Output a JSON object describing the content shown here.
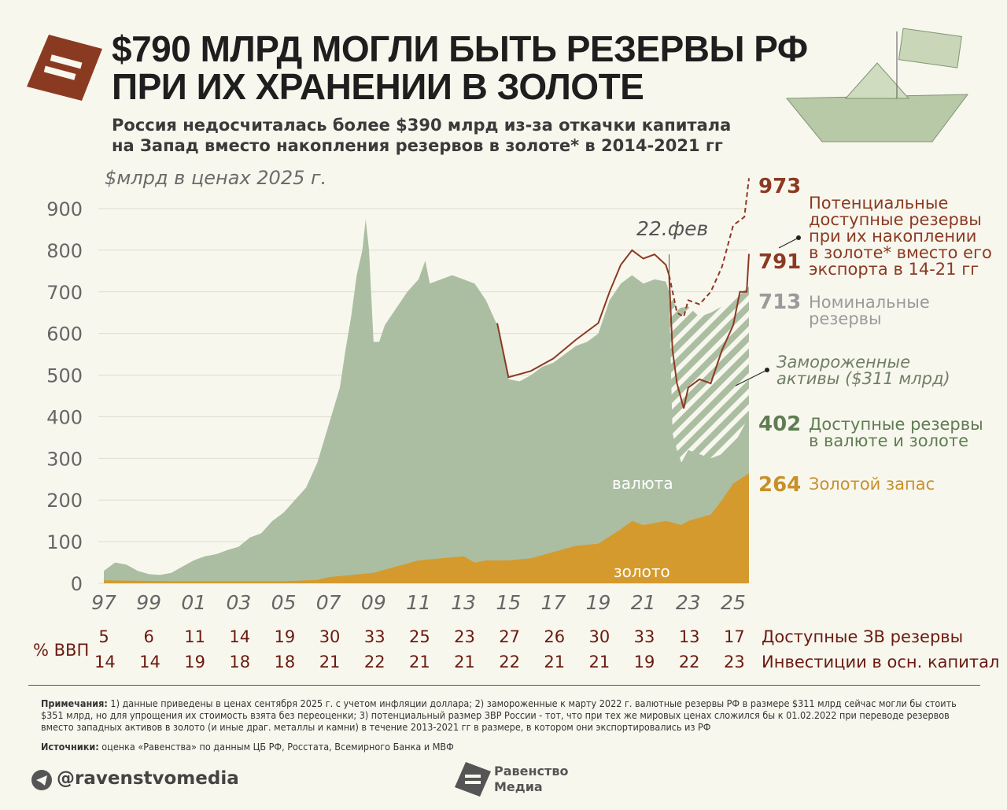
{
  "title_lines": [
    "$790 МЛРД МОГЛИ БЫТЬ РЕЗЕРВЫ РФ",
    "ПРИ ИХ ХРАНЕНИИ В ЗОЛОТЕ"
  ],
  "subtitle_lines": [
    "Россия недосчиталась более $390 млрд из-за откачки капитала",
    "на Запад вместо накопления резервов в золоте* в 2014-2021 гг"
  ],
  "colors": {
    "brand": "#8b3a22",
    "available": "#abbea2",
    "gold": "#d49a2e",
    "potential": "#8b3a22",
    "nominal_label": "#9a9a9a",
    "available_label": "#5f7d52"
  },
  "chart_data": {
    "type": "area",
    "ylabel": "$млрд в ценах 2025 г.",
    "ylim": [
      0,
      900
    ],
    "yticks": [
      0,
      100,
      200,
      300,
      400,
      500,
      600,
      700,
      800,
      900
    ],
    "xticks": [
      "97",
      "99",
      "01",
      "03",
      "05",
      "07",
      "09",
      "11",
      "13",
      "15",
      "17",
      "19",
      "21",
      "23",
      "25"
    ],
    "grid": true,
    "annotation": "22.фев",
    "area_labels": {
      "currency": "валюта",
      "gold": "золото"
    },
    "series": [
      {
        "key": "nominal",
        "name": "Номинальные резервы",
        "end_value": 713,
        "points": [
          [
            1997,
            30
          ],
          [
            1997.5,
            50
          ],
          [
            1998,
            45
          ],
          [
            1998.5,
            30
          ],
          [
            1999,
            22
          ],
          [
            1999.5,
            20
          ],
          [
            2000,
            25
          ],
          [
            2000.5,
            40
          ],
          [
            2001,
            55
          ],
          [
            2001.5,
            65
          ],
          [
            2002,
            70
          ],
          [
            2002.5,
            80
          ],
          [
            2003,
            88
          ],
          [
            2003.5,
            110
          ],
          [
            2004,
            120
          ],
          [
            2004.5,
            150
          ],
          [
            2005,
            170
          ],
          [
            2005.5,
            200
          ],
          [
            2006,
            230
          ],
          [
            2006.5,
            290
          ],
          [
            2007,
            380
          ],
          [
            2007.5,
            470
          ],
          [
            2007.75,
            560
          ],
          [
            2008,
            640
          ],
          [
            2008.25,
            740
          ],
          [
            2008.5,
            800
          ],
          [
            2008.65,
            875
          ],
          [
            2008.8,
            800
          ],
          [
            2009,
            580
          ],
          [
            2009.25,
            580
          ],
          [
            2009.5,
            620
          ],
          [
            2010,
            660
          ],
          [
            2010.5,
            700
          ],
          [
            2011,
            730
          ],
          [
            2011.3,
            775
          ],
          [
            2011.5,
            720
          ],
          [
            2012,
            730
          ],
          [
            2012.5,
            740
          ],
          [
            2013,
            730
          ],
          [
            2013.5,
            720
          ],
          [
            2014,
            680
          ],
          [
            2014.5,
            620
          ],
          [
            2015,
            490
          ],
          [
            2015.5,
            485
          ],
          [
            2016,
            500
          ],
          [
            2016.5,
            520
          ],
          [
            2017,
            530
          ],
          [
            2017.5,
            550
          ],
          [
            2018,
            570
          ],
          [
            2018.5,
            580
          ],
          [
            2019,
            600
          ],
          [
            2019.5,
            680
          ],
          [
            2020,
            720
          ],
          [
            2020.5,
            740
          ],
          [
            2021,
            720
          ],
          [
            2021.5,
            730
          ],
          [
            2022,
            725
          ],
          [
            2022.15,
            700
          ],
          [
            2022.5,
            660
          ],
          [
            2023,
            665
          ],
          [
            2023.5,
            640
          ],
          [
            2024,
            650
          ],
          [
            2024.5,
            665
          ],
          [
            2025,
            680
          ],
          [
            2025.7,
            713
          ]
        ]
      },
      {
        "key": "available",
        "name": "Доступные резервы в валюте и золоте",
        "end_value": 402,
        "points": [
          [
            2022.15,
            700
          ],
          [
            2022.3,
            360
          ],
          [
            2022.5,
            320
          ],
          [
            2022.7,
            290
          ],
          [
            2023,
            320
          ],
          [
            2023.5,
            310
          ],
          [
            2024,
            300
          ],
          [
            2024.5,
            310
          ],
          [
            2025,
            330
          ],
          [
            2025.4,
            370
          ],
          [
            2025.7,
            402
          ]
        ]
      },
      {
        "key": "frozen",
        "name": "Замороженные активы ($311 млрд)"
      },
      {
        "key": "gold",
        "name": "Золотой запас",
        "end_value": 264,
        "points": [
          [
            1997,
            7
          ],
          [
            2000,
            5
          ],
          [
            2005,
            5
          ],
          [
            2006.5,
            8
          ],
          [
            2007,
            15
          ],
          [
            2009,
            25
          ],
          [
            2010,
            40
          ],
          [
            2011,
            55
          ],
          [
            2012,
            60
          ],
          [
            2013,
            65
          ],
          [
            2013.5,
            50
          ],
          [
            2014,
            55
          ],
          [
            2015,
            55
          ],
          [
            2016,
            60
          ],
          [
            2017,
            75
          ],
          [
            2018,
            90
          ],
          [
            2019,
            95
          ],
          [
            2020,
            130
          ],
          [
            2020.5,
            150
          ],
          [
            2021,
            140
          ],
          [
            2022,
            150
          ],
          [
            2022.7,
            140
          ],
          [
            2023,
            150
          ],
          [
            2024,
            165
          ],
          [
            2024.5,
            200
          ],
          [
            2025,
            240
          ],
          [
            2025.7,
            264
          ]
        ]
      },
      {
        "key": "potential_available",
        "name": "Потенциальные доступные резервы при их накоплении в золоте* вместо его экспорта в 14-21 гг",
        "end_value": 791,
        "points": [
          [
            2014.5,
            625
          ],
          [
            2015,
            495
          ],
          [
            2016,
            510
          ],
          [
            2017,
            540
          ],
          [
            2018,
            585
          ],
          [
            2019,
            625
          ],
          [
            2019.5,
            700
          ],
          [
            2020,
            765
          ],
          [
            2020.5,
            800
          ],
          [
            2021,
            780
          ],
          [
            2021.5,
            790
          ],
          [
            2022,
            765
          ],
          [
            2022.15,
            740
          ],
          [
            2022.3,
            560
          ],
          [
            2022.5,
            480
          ],
          [
            2022.8,
            420
          ],
          [
            2023,
            470
          ],
          [
            2023.5,
            490
          ],
          [
            2024,
            480
          ],
          [
            2024.5,
            560
          ],
          [
            2025,
            620
          ],
          [
            2025.3,
            700
          ],
          [
            2025.6,
            700
          ],
          [
            2025.7,
            791
          ]
        ]
      },
      {
        "key": "potential_total",
        "end_value": 973,
        "points": [
          [
            2022.15,
            740
          ],
          [
            2022.5,
            650
          ],
          [
            2022.8,
            640
          ],
          [
            2023,
            680
          ],
          [
            2023.5,
            670
          ],
          [
            2024,
            700
          ],
          [
            2024.5,
            760
          ],
          [
            2025,
            860
          ],
          [
            2025.5,
            880
          ],
          [
            2025.7,
            973
          ]
        ]
      }
    ]
  },
  "right_labels": {
    "v973": "973",
    "v791": "791",
    "potential": [
      "Потенциальные",
      "доступные резервы",
      "при их накоплении",
      "в золоте* вместо его",
      "экспорта в 14-21 гг"
    ],
    "v713": "713",
    "nominal": [
      "Номинальные",
      "резервы"
    ],
    "frozen": [
      "Замороженные",
      "активы ($311 млрд)"
    ],
    "v402": "402",
    "available": [
      "Доступные резервы",
      "в валюте и золоте"
    ],
    "v264": "264",
    "gold": "Золотой запас"
  },
  "gdp_table": {
    "label": "% ВВП",
    "row1_label": "Доступные ЗВ резервы",
    "row1": [
      "5",
      "6",
      "11",
      "14",
      "19",
      "30",
      "33",
      "25",
      "23",
      "27",
      "26",
      "30",
      "33",
      "13",
      "17"
    ],
    "row2_label": "Инвестиции в осн. капитал",
    "row2": [
      "14",
      "14",
      "19",
      "18",
      "18",
      "21",
      "22",
      "21",
      "21",
      "22",
      "21",
      "21",
      "19",
      "22",
      "23"
    ]
  },
  "notes": {
    "notes_head": "Примечания:",
    "notes_text": " 1) данные приведены в ценах сентября 2025 г. с учетом инфляции доллара; 2) замороженные к марту 2022 г. валютные резервы РФ в размере $311 млрд сейчас могли бы стоить $351 млрд, но для упрощения их стоимость взята без переоценки; 3) потенциальный размер ЗВР России - тот, что при тех же мировых ценах сложился бы к 01.02.2022 при переводе резервов вместо западных активов в золото (и иные драг. металлы и камни) в течение 2013-2021 гг в размере, в котором они экспортировались из РФ",
    "sources_head": "Источники:",
    "sources_text": " оценка «Равенства» по данным ЦБ РФ, Росстата, Всемирного Банка и МВФ"
  },
  "footer": {
    "handle": "@ravenstvomedia",
    "logo_text": [
      "Равенство",
      "Медиа"
    ]
  }
}
